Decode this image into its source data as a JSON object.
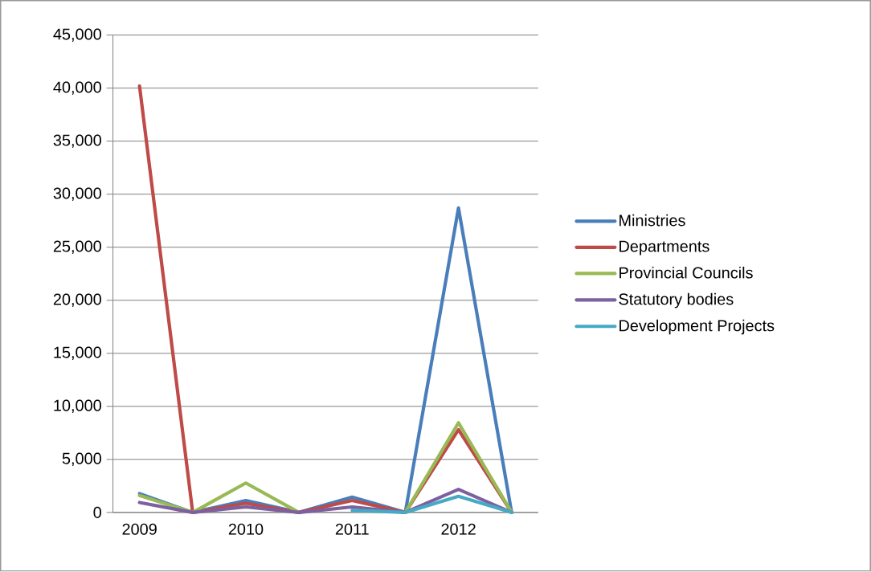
{
  "chart_data": {
    "type": "line",
    "categories": [
      "2009",
      null,
      "2010",
      null,
      "2011",
      null,
      "2012",
      null
    ],
    "series": [
      {
        "name": "Ministries",
        "color": "#4a7ebb",
        "values": [
          1780,
          0,
          1120,
          0,
          1440,
          0,
          28700,
          0
        ]
      },
      {
        "name": "Departments",
        "color": "#be4b48",
        "values": [
          40200,
          0,
          860,
          0,
          1120,
          0,
          7800,
          0
        ]
      },
      {
        "name": "Provincial Councils",
        "color": "#98b954",
        "values": [
          1600,
          0,
          2770,
          0,
          null,
          0,
          8450,
          0
        ]
      },
      {
        "name": "Statutory bodies",
        "color": "#7d60a0",
        "values": [
          940,
          0,
          520,
          0,
          520,
          0,
          2170,
          0
        ]
      },
      {
        "name": "Development Projects",
        "color": "#46aac5",
        "values": [
          null,
          null,
          null,
          null,
          210,
          0,
          1520,
          0
        ]
      }
    ],
    "ylim": [
      0,
      45000
    ],
    "yticks": [
      {
        "value": 0,
        "label": "0"
      },
      {
        "value": 5000,
        "label": "5,000"
      },
      {
        "value": 10000,
        "label": "10,000"
      },
      {
        "value": 15000,
        "label": "15,000"
      },
      {
        "value": 20000,
        "label": "20,000"
      },
      {
        "value": 25000,
        "label": "25,000"
      },
      {
        "value": 30000,
        "label": "30,000"
      },
      {
        "value": 35000,
        "label": "35,000"
      },
      {
        "value": 40000,
        "label": "40,000"
      },
      {
        "value": 45000,
        "label": "45,000"
      }
    ],
    "grid": "y",
    "legend": "right"
  }
}
